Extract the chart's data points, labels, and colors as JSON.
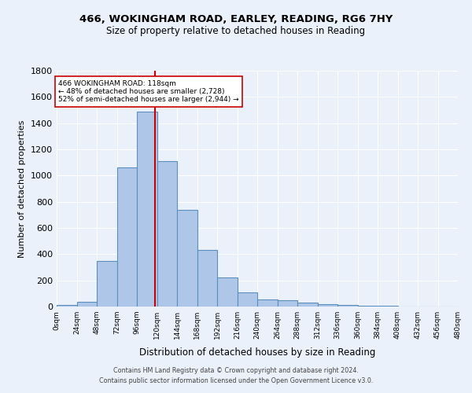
{
  "title1": "466, WOKINGHAM ROAD, EARLEY, READING, RG6 7HY",
  "title2": "Size of property relative to detached houses in Reading",
  "xlabel": "Distribution of detached houses by size in Reading",
  "ylabel": "Number of detached properties",
  "footnote1": "Contains HM Land Registry data © Crown copyright and database right 2024.",
  "footnote2": "Contains public sector information licensed under the Open Government Licence v3.0.",
  "bin_edges": [
    0,
    24,
    48,
    72,
    96,
    120,
    144,
    168,
    192,
    216,
    240,
    264,
    288,
    312,
    336,
    360,
    384,
    408,
    432,
    456,
    480
  ],
  "bar_heights": [
    10,
    35,
    350,
    1060,
    1490,
    1110,
    740,
    430,
    220,
    110,
    55,
    47,
    30,
    17,
    12,
    7,
    4,
    3,
    2,
    1
  ],
  "bar_color": "#aec6e8",
  "bar_edge_color": "#5b8fbe",
  "subject_value": 118,
  "vline_color": "#cc0000",
  "annotation_text": "466 WOKINGHAM ROAD: 118sqm\n← 48% of detached houses are smaller (2,728)\n52% of semi-detached houses are larger (2,944) →",
  "annotation_box_color": "#ffffff",
  "annotation_box_edge_color": "#cc0000",
  "background_color": "#eaf1fb",
  "grid_color": "#ffffff",
  "ylim": [
    0,
    1800
  ],
  "yticks": [
    0,
    200,
    400,
    600,
    800,
    1000,
    1200,
    1400,
    1600,
    1800
  ],
  "xtick_labels": [
    "0sqm",
    "24sqm",
    "48sqm",
    "72sqm",
    "96sqm",
    "120sqm",
    "144sqm",
    "168sqm",
    "192sqm",
    "216sqm",
    "240sqm",
    "264sqm",
    "288sqm",
    "312sqm",
    "336sqm",
    "360sqm",
    "384sqm",
    "408sqm",
    "432sqm",
    "456sqm",
    "480sqm"
  ]
}
